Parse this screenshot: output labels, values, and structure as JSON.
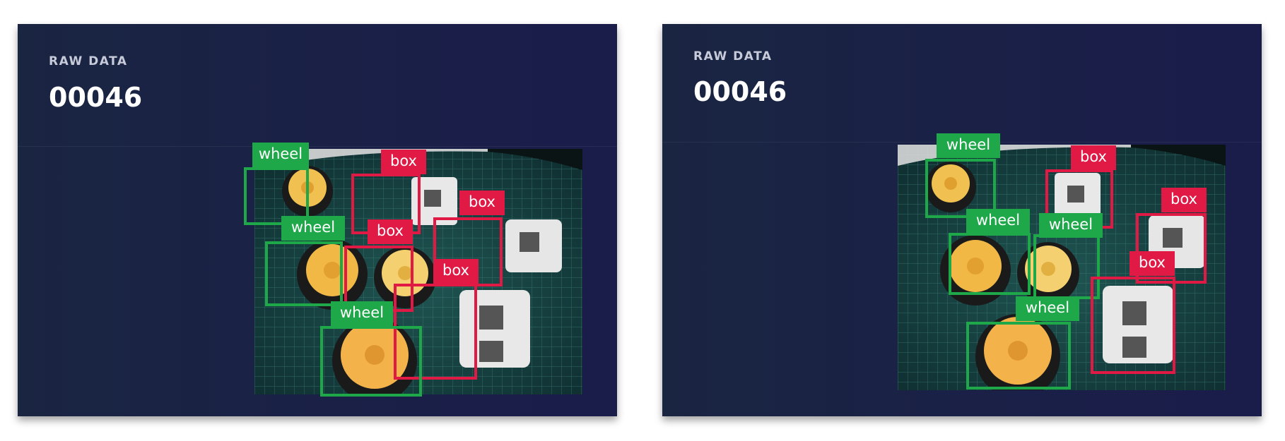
{
  "colors": {
    "panel_bg": "#1a2542",
    "wheel": "#1fa84a",
    "box": "#e01945"
  },
  "panels": [
    {
      "eyebrow": "RAW DATA",
      "counter": "00046",
      "detections": [
        {
          "label": "wheel",
          "class": "wheel"
        },
        {
          "label": "box",
          "class": "box"
        },
        {
          "label": "box",
          "class": "box"
        },
        {
          "label": "wheel",
          "class": "wheel"
        },
        {
          "label": "box",
          "class": "box"
        },
        {
          "label": "box",
          "class": "box"
        },
        {
          "label": "wheel",
          "class": "wheel"
        }
      ]
    },
    {
      "eyebrow": "RAW DATA",
      "counter": "00046",
      "detections": [
        {
          "label": "wheel",
          "class": "wheel"
        },
        {
          "label": "box",
          "class": "box"
        },
        {
          "label": "box",
          "class": "box"
        },
        {
          "label": "wheel",
          "class": "wheel"
        },
        {
          "label": "wheel",
          "class": "wheel"
        },
        {
          "label": "box",
          "class": "box"
        },
        {
          "label": "wheel",
          "class": "wheel"
        }
      ]
    }
  ]
}
